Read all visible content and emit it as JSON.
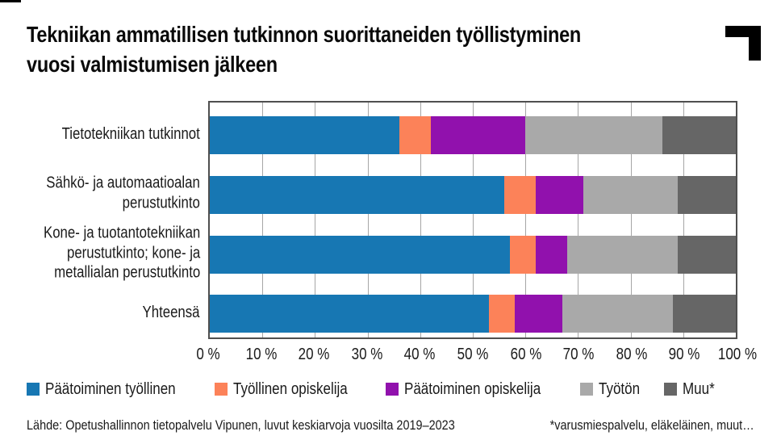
{
  "page": {
    "title_line1": "Tekniikan ammatillisen tutkinnon suorittaneiden työllistyminen",
    "title_line2": "vuosi valmistumisen jälkeen"
  },
  "footer": {
    "source": "Lähde: Opetushallinnon tietopalvelu Vipunen, luvut keskiarvoja vuosilta 2019–2023",
    "footnote": "*varusmiespalvelu, eläkeläinen, muut…"
  },
  "chart_data": {
    "type": "bar",
    "orientation": "horizontal",
    "stacked": true,
    "title": "Tekniikan ammatillisen tutkinnon suorittaneiden työllistyminen vuosi valmistumisen jälkeen",
    "categories": [
      "Tietotekniikan tutkinnot",
      "Sähkö- ja automaatioalan perustutkinto",
      "Kone- ja tuotantotekniikan perustutkinto; kone- ja metallialan perustutkinto",
      "Yhteensä"
    ],
    "categories_lines": [
      [
        "Tietotekniikan tutkinnot"
      ],
      [
        "Sähkö- ja automaatioalan",
        "perustutkinto"
      ],
      [
        "Kone- ja tuotantotekniikan",
        "perustutkinto; kone- ja",
        "metallialan perustutkinto"
      ],
      [
        "Yhteensä"
      ]
    ],
    "series": [
      {
        "name": "Päätoiminen työllinen",
        "color": "#1777b3",
        "values": [
          36,
          56,
          57,
          53
        ]
      },
      {
        "name": "Työllinen opiskelija",
        "color": "#fc8259",
        "values": [
          6,
          6,
          5,
          5
        ]
      },
      {
        "name": "Päätoiminen opiskelija",
        "color": "#9111ad",
        "values": [
          18,
          9,
          6,
          9
        ]
      },
      {
        "name": "Työtön",
        "color": "#a9a9a9",
        "values": [
          26,
          18,
          21,
          21
        ]
      },
      {
        "name": "Muu*",
        "color": "#666666",
        "values": [
          14,
          11,
          11,
          12
        ]
      }
    ],
    "x_ticks": [
      "0 %",
      "10 %",
      "20 %",
      "30 %",
      "40 %",
      "50 %",
      "60 %",
      "70 %",
      "80 %",
      "90 %",
      "100 %"
    ],
    "xlim": [
      0,
      100
    ],
    "grid": "vertical",
    "legend_position": "bottom",
    "colors": {
      "plot_border": "#4f4f4f",
      "gridline": "#a6a6a6",
      "text": "#1a1a1a",
      "logo": "#000000"
    }
  }
}
